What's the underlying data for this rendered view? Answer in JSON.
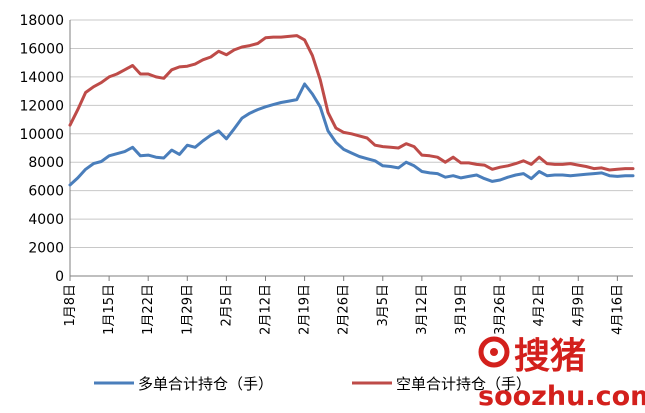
{
  "chart_data": {
    "type": "line",
    "title": "",
    "xlabel": "",
    "ylabel": "",
    "ylim": [
      0,
      18000
    ],
    "yticks": [
      0,
      2000,
      4000,
      6000,
      8000,
      10000,
      12000,
      14000,
      16000,
      18000
    ],
    "x_tick_labels": [
      "1月8日",
      "1月15日",
      "1月22日",
      "1月29日",
      "2月5日",
      "2月12日",
      "2月19日",
      "2月26日",
      "3月5日",
      "3月12日",
      "3月19日",
      "3月26日",
      "4月2日",
      "4月9日",
      "4月16日"
    ],
    "legend_position": "bottom",
    "grid": "horizontal",
    "colors": {
      "long": "#4a7ebb",
      "short": "#be4b48",
      "grid": "#c8c8c8",
      "axis": "#7f7f7f"
    },
    "series": [
      {
        "name": "多单合计持仓（手）",
        "color": "#4a7ebb",
        "points": [
          [
            "1月8日",
            6400
          ],
          [
            "1月9日",
            6900
          ],
          [
            "1月10日",
            7500
          ],
          [
            "1月11日",
            7900
          ],
          [
            "1月12日",
            8050
          ],
          [
            "1月15日",
            8450
          ],
          [
            "1月16日",
            8600
          ],
          [
            "1月17日",
            8750
          ],
          [
            "1月18日",
            9050
          ],
          [
            "1月19日",
            8450
          ],
          [
            "1月22日",
            8500
          ],
          [
            "1月23日",
            8350
          ],
          [
            "1月24日",
            8300
          ],
          [
            "1月25日",
            8850
          ],
          [
            "1月26日",
            8550
          ],
          [
            "1月29日",
            9200
          ],
          [
            "1月30日",
            9050
          ],
          [
            "1月31日",
            9500
          ],
          [
            "2月1日",
            9900
          ],
          [
            "2月2日",
            10200
          ],
          [
            "2月5日",
            9650
          ],
          [
            "2月6日",
            10350
          ],
          [
            "2月7日",
            11100
          ],
          [
            "2月8日",
            11450
          ],
          [
            "2月9日",
            11700
          ],
          [
            "2月12日",
            11900
          ],
          [
            "2月13日",
            12050
          ],
          [
            "2月14日",
            12200
          ],
          [
            "2月15日",
            12300
          ],
          [
            "2月16日",
            12400
          ],
          [
            "2月19日",
            13500
          ],
          [
            "2月20日",
            12800
          ],
          [
            "2月21日",
            11900
          ],
          [
            "2月22日",
            10200
          ],
          [
            "2月23日",
            9400
          ],
          [
            "2月26日",
            8900
          ],
          [
            "2月27日",
            8650
          ],
          [
            "2月28日",
            8400
          ],
          [
            "3月1日",
            8250
          ],
          [
            "3月2日",
            8100
          ],
          [
            "3月5日",
            7750
          ],
          [
            "3月6日",
            7700
          ],
          [
            "3月7日",
            7600
          ],
          [
            "3月8日",
            8000
          ],
          [
            "3月9日",
            7750
          ],
          [
            "3月12日",
            7350
          ],
          [
            "3月13日",
            7250
          ],
          [
            "3月14日",
            7200
          ],
          [
            "3月15日",
            6950
          ],
          [
            "3月16日",
            7050
          ],
          [
            "3月19日",
            6900
          ],
          [
            "3月20日",
            7000
          ],
          [
            "3月21日",
            7100
          ],
          [
            "3月22日",
            6850
          ],
          [
            "3月23日",
            6650
          ],
          [
            "3月26日",
            6750
          ],
          [
            "3月27日",
            6950
          ],
          [
            "3月28日",
            7100
          ],
          [
            "3月29日",
            7200
          ],
          [
            "3月30日",
            6850
          ],
          [
            "4月2日",
            7350
          ],
          [
            "4月3日",
            7050
          ],
          [
            "4月4日",
            7100
          ],
          [
            "4月5日",
            7100
          ],
          [
            "4月6日",
            7050
          ],
          [
            "4月9日",
            7100
          ],
          [
            "4月10日",
            7150
          ],
          [
            "4月11日",
            7200
          ],
          [
            "4月12日",
            7250
          ],
          [
            "4月13日",
            7050
          ],
          [
            "4月16日",
            7000
          ],
          [
            "4月17日",
            7050
          ],
          [
            "4月18日",
            7050
          ]
        ]
      },
      {
        "name": "空单合计持仓（手）",
        "color": "#be4b48",
        "points": [
          [
            "1月8日",
            10600
          ],
          [
            "1月9日",
            11700
          ],
          [
            "1月10日",
            12900
          ],
          [
            "1月11日",
            13300
          ],
          [
            "1月12日",
            13600
          ],
          [
            "1月15日",
            14000
          ],
          [
            "1月16日",
            14200
          ],
          [
            "1月17日",
            14500
          ],
          [
            "1月18日",
            14800
          ],
          [
            "1月19日",
            14200
          ],
          [
            "1月22日",
            14200
          ],
          [
            "1月23日",
            14000
          ],
          [
            "1月24日",
            13900
          ],
          [
            "1月25日",
            14500
          ],
          [
            "1月26日",
            14700
          ],
          [
            "1月29日",
            14750
          ],
          [
            "1月30日",
            14900
          ],
          [
            "1月31日",
            15200
          ],
          [
            "2月1日",
            15400
          ],
          [
            "2月2日",
            15800
          ],
          [
            "2月5日",
            15550
          ],
          [
            "2月6日",
            15900
          ],
          [
            "2月7日",
            16100
          ],
          [
            "2月8日",
            16200
          ],
          [
            "2月9日",
            16350
          ],
          [
            "2月12日",
            16750
          ],
          [
            "2月13日",
            16800
          ],
          [
            "2月14日",
            16800
          ],
          [
            "2月15日",
            16850
          ],
          [
            "2月16日",
            16900
          ],
          [
            "2月19日",
            16600
          ],
          [
            "2月20日",
            15500
          ],
          [
            "2月21日",
            13800
          ],
          [
            "2月22日",
            11500
          ],
          [
            "2月23日",
            10400
          ],
          [
            "2月26日",
            10100
          ],
          [
            "2月27日",
            10000
          ],
          [
            "2月28日",
            9850
          ],
          [
            "3月1日",
            9700
          ],
          [
            "3月2日",
            9200
          ],
          [
            "3月5日",
            9100
          ],
          [
            "3月6日",
            9050
          ],
          [
            "3月7日",
            9000
          ],
          [
            "3月8日",
            9300
          ],
          [
            "3月9日",
            9100
          ],
          [
            "3月12日",
            8500
          ],
          [
            "3月13日",
            8450
          ],
          [
            "3月14日",
            8350
          ],
          [
            "3月15日",
            8000
          ],
          [
            "3月16日",
            8350
          ],
          [
            "3月19日",
            7950
          ],
          [
            "3月20日",
            7950
          ],
          [
            "3月21日",
            7850
          ],
          [
            "3月22日",
            7800
          ],
          [
            "3月23日",
            7500
          ],
          [
            "3月26日",
            7650
          ],
          [
            "3月27日",
            7750
          ],
          [
            "3月28日",
            7900
          ],
          [
            "3月29日",
            8100
          ],
          [
            "3月30日",
            7850
          ],
          [
            "4月2日",
            8350
          ],
          [
            "4月3日",
            7900
          ],
          [
            "4月4日",
            7850
          ],
          [
            "4月5日",
            7850
          ],
          [
            "4月6日",
            7900
          ],
          [
            "4月9日",
            7800
          ],
          [
            "4月10日",
            7700
          ],
          [
            "4月11日",
            7550
          ],
          [
            "4月12日",
            7600
          ],
          [
            "4月13日",
            7450
          ],
          [
            "4月16日",
            7500
          ],
          [
            "4月17日",
            7550
          ],
          [
            "4月18日",
            7550
          ]
        ]
      }
    ]
  },
  "watermark": {
    "brand_text": "搜猪",
    "site_text": "soozhu.com",
    "color": "#d3201c"
  }
}
